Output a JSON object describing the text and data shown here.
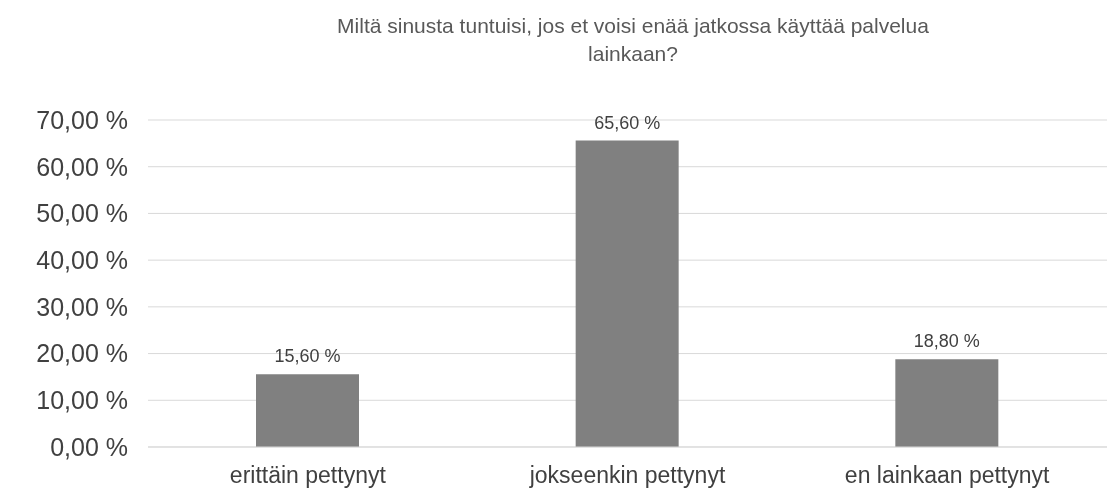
{
  "chart_data": {
    "type": "bar",
    "title": "Miltä sinusta tuntuisi, jos et voisi enää jatkossa käyttää palvelua lainkaan?",
    "categories": [
      "erittäin pettynyt",
      "jokseenkin pettynyt",
      "en lainkaan pettynyt"
    ],
    "values": [
      15.6,
      65.6,
      18.8
    ],
    "value_labels": [
      "15,60 %",
      "65,60 %",
      "18,80 %"
    ],
    "color": "#808080",
    "ylim": [
      0,
      70
    ],
    "yticks": [
      {
        "value": 0,
        "label": "0,00 %"
      },
      {
        "value": 10,
        "label": "10,00 %"
      },
      {
        "value": 20,
        "label": "20,00 %"
      },
      {
        "value": 30,
        "label": "30,00 %"
      },
      {
        "value": 40,
        "label": "40,00 %"
      },
      {
        "value": 50,
        "label": "50,00 %"
      },
      {
        "value": 60,
        "label": "60,00 %"
      },
      {
        "value": 70,
        "label": "70,00 %"
      }
    ],
    "grid": "y"
  }
}
